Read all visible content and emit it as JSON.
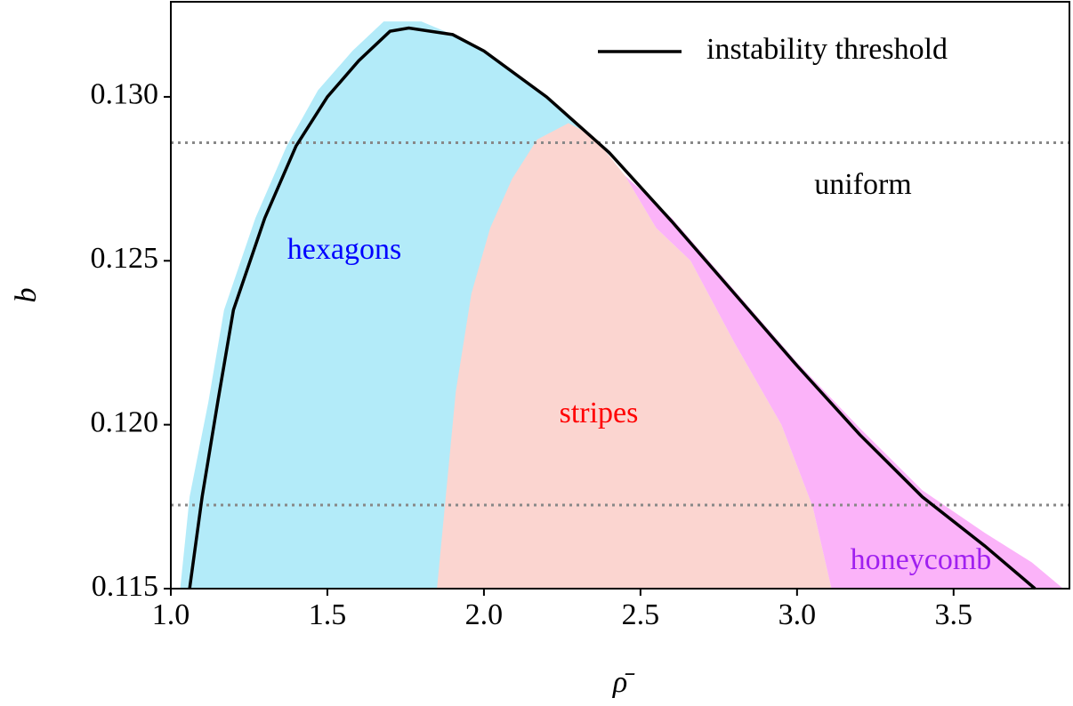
{
  "chart_data": {
    "type": "area",
    "xlabel": "ρ̄",
    "ylabel": "b",
    "xlim": [
      1.0,
      3.87
    ],
    "ylim": [
      0.115,
      0.1329
    ],
    "xticks": [
      {
        "value": 1.0,
        "label": "1.0"
      },
      1.5,
      {
        "value": 2.0,
        "label": "2.0"
      },
      2.5,
      {
        "value": 3.0,
        "label": "3.0"
      },
      3.5
    ],
    "yticks": [
      0.115,
      {
        "value": 0.12,
        "label": "0.120"
      },
      0.125,
      {
        "value": 0.13,
        "label": "0.130"
      }
    ],
    "hlines": [
      0.1286,
      0.11755
    ],
    "hline_color": "#888888",
    "legend": "upper right",
    "regions": [
      {
        "name": "hexagons",
        "color": "#b3ebf9",
        "label_color": "#0000ff",
        "x": [
          1.03,
          1.06,
          1.12,
          1.17,
          1.27,
          1.37,
          1.47,
          1.58,
          1.68,
          1.8,
          1.9,
          2.0,
          2.2,
          2.4,
          1.85
        ],
        "values": [
          0.115,
          0.1178,
          0.1207,
          0.1235,
          0.1263,
          0.1285,
          0.1302,
          0.1314,
          0.1323,
          0.1323,
          0.1319,
          0.1314,
          0.13,
          0.1283,
          0.115
        ]
      },
      {
        "name": "stripes",
        "color": "#fbd5d0",
        "label_color": "#ff0000",
        "x": [
          1.85,
          1.88,
          1.91,
          1.96,
          2.02,
          2.09,
          2.17,
          2.27,
          2.35,
          2.45,
          2.55,
          2.66,
          2.8,
          2.95,
          3.05,
          3.11
        ],
        "values": [
          0.115,
          0.118,
          0.121,
          0.124,
          0.126,
          0.1275,
          0.1287,
          0.1292,
          0.1288,
          0.1276,
          0.126,
          0.125,
          0.1225,
          0.12,
          0.1175,
          0.115
        ]
      },
      {
        "name": "honeycomb",
        "color": "#fbb3f9",
        "label_color": "#a020f0",
        "x": [
          2.45,
          2.6,
          2.8,
          3.0,
          3.2,
          3.4,
          3.6,
          3.75,
          3.85,
          3.11,
          3.05,
          2.95,
          2.8,
          2.66,
          2.55
        ],
        "values": [
          0.1276,
          0.1263,
          0.1241,
          0.1219,
          0.1199,
          0.118,
          0.1167,
          0.1158,
          0.115,
          0.115,
          0.1175,
          0.12,
          0.1225,
          0.125,
          0.126
        ]
      }
    ],
    "annotations": [
      "uniform"
    ],
    "series": [
      {
        "name": "instability threshold",
        "color": "#000000",
        "x": [
          1.06,
          1.1,
          1.15,
          1.2,
          1.3,
          1.4,
          1.5,
          1.6,
          1.7,
          1.76,
          1.9,
          2.0,
          2.2,
          2.4,
          2.6,
          2.8,
          3.0,
          3.2,
          3.4,
          3.6,
          3.76
        ],
        "values": [
          0.115,
          0.1178,
          0.1207,
          0.1235,
          0.1263,
          0.1285,
          0.13,
          0.1311,
          0.132,
          0.1321,
          0.1319,
          0.1314,
          0.13,
          0.1283,
          0.1262,
          0.124,
          0.1218,
          0.1197,
          0.1178,
          0.1163,
          0.115
        ]
      }
    ]
  }
}
